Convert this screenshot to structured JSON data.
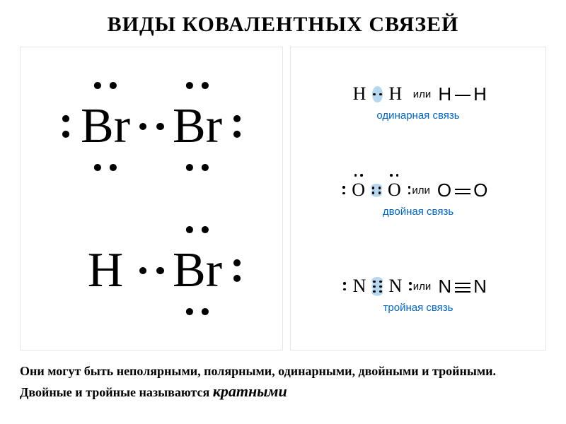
{
  "title": "ВИДЫ КОВАЛЕНТНЫХ СВЯЗЕЙ",
  "colors": {
    "background": "#ffffff",
    "text": "#000000",
    "label": "#0066cc",
    "highlight": "#b6d8ee",
    "panel_border": "#e6e6e6"
  },
  "left": {
    "mol1": {
      "atoms": [
        {
          "symbol": "Br",
          "lone_pairs": [
            "top",
            "bottom",
            "left"
          ]
        },
        {
          "symbol": "Br",
          "lone_pairs": [
            "top",
            "bottom",
            "right"
          ]
        }
      ],
      "shared_pairs": 1,
      "font_size": 70,
      "highlight": false
    },
    "mol2": {
      "atoms": [
        {
          "symbol": "H",
          "lone_pairs": []
        },
        {
          "symbol": "Br",
          "lone_pairs": [
            "top",
            "bottom",
            "right"
          ]
        }
      ],
      "shared_pairs": 1,
      "font_size": 70,
      "highlight": false
    }
  },
  "right": {
    "or_word": "или",
    "bonds": [
      {
        "lewis": {
          "atoms": [
            {
              "symbol": "H",
              "lone_pairs": []
            },
            {
              "symbol": "H",
              "lone_pairs": []
            }
          ],
          "shared_pairs": 1,
          "font_size": 26,
          "highlight": true
        },
        "line": {
          "left": "H",
          "right": "H",
          "bond_order": 1
        },
        "label": "одинарная связь"
      },
      {
        "lewis": {
          "atoms": [
            {
              "symbol": "O",
              "lone_pairs": [
                "top",
                "left"
              ]
            },
            {
              "symbol": "O",
              "lone_pairs": [
                "top",
                "right"
              ]
            }
          ],
          "shared_pairs": 2,
          "font_size": 26,
          "highlight": true
        },
        "line": {
          "left": "O",
          "right": "O",
          "bond_order": 2
        },
        "label": "двойная связь"
      },
      {
        "lewis": {
          "atoms": [
            {
              "symbol": "N",
              "lone_pairs": [
                "left"
              ]
            },
            {
              "symbol": "N",
              "lone_pairs": [
                "right"
              ]
            }
          ],
          "shared_pairs": 3,
          "font_size": 26,
          "highlight": true
        },
        "line": {
          "left": "N",
          "right": "N",
          "bond_order": 3
        },
        "label": "тройная связь"
      }
    ]
  },
  "footer": {
    "text_a": "Они могут быть неполярными, полярными, одинарными, двойными и тройными. Двойные и тройные называются ",
    "emph": "кратными"
  }
}
